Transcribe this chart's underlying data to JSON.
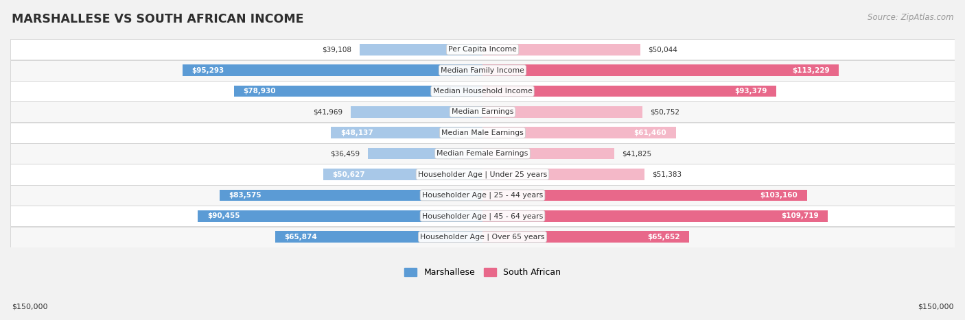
{
  "title": "MARSHALLESE VS SOUTH AFRICAN INCOME",
  "source": "Source: ZipAtlas.com",
  "categories": [
    "Per Capita Income",
    "Median Family Income",
    "Median Household Income",
    "Median Earnings",
    "Median Male Earnings",
    "Median Female Earnings",
    "Householder Age | Under 25 years",
    "Householder Age | 25 - 44 years",
    "Householder Age | 45 - 64 years",
    "Householder Age | Over 65 years"
  ],
  "marshallese": [
    39108,
    95293,
    78930,
    41969,
    48137,
    36459,
    50627,
    83575,
    90455,
    65874
  ],
  "south_african": [
    50044,
    113229,
    93379,
    50752,
    61460,
    41825,
    51383,
    103160,
    109719,
    65652
  ],
  "max_val": 150000,
  "blue_light": "#A8C8E8",
  "blue_dark": "#5B9BD5",
  "pink_light": "#F4B8C8",
  "pink_dark": "#E8688A",
  "bg_color": "#F2F2F2",
  "row_bg_even": "#FFFFFF",
  "row_bg_odd": "#F7F7F7",
  "border_color": "#CCCCCC",
  "title_color": "#2E2E2E",
  "source_color": "#999999",
  "label_dark_threshold": 65000,
  "center_bg": "#F0F0F0",
  "center_text_color": "#333333",
  "outside_label_color": "#333333",
  "inside_label_color": "#FFFFFF"
}
